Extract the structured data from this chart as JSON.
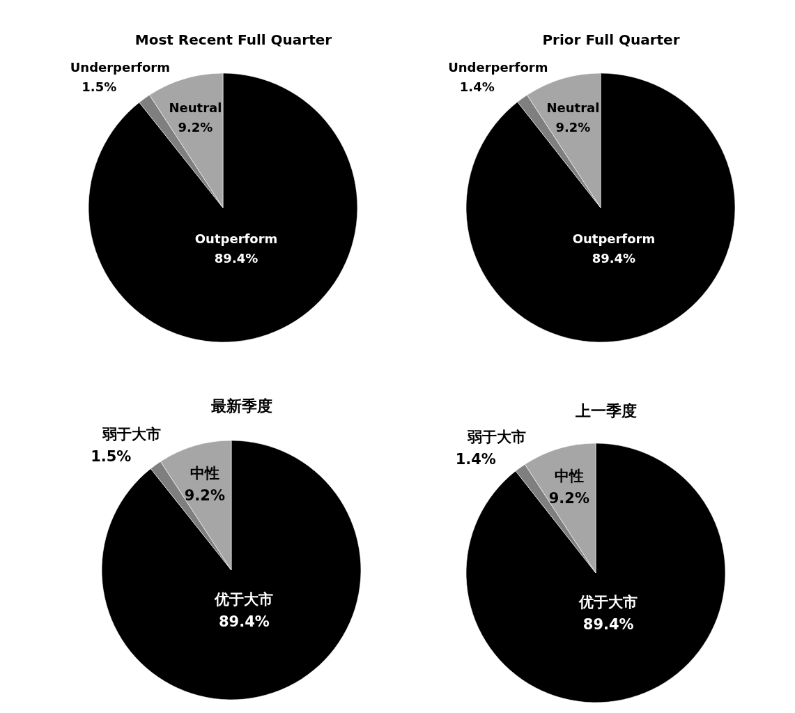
{
  "chart_data": [
    {
      "type": "pie",
      "title": "Most Recent Full Quarter",
      "categories": [
        "Outperform",
        "Underperform",
        "Neutral"
      ],
      "values": [
        89.4,
        1.5,
        9.2
      ],
      "value_labels": [
        "89.4%",
        "1.5%",
        "9.2%"
      ],
      "colors": [
        "#000000",
        "#7f7f7f",
        "#a6a6a6"
      ]
    },
    {
      "type": "pie",
      "title": "Prior Full Quarter",
      "categories": [
        "Outperform",
        "Underperform",
        "Neutral"
      ],
      "values": [
        89.4,
        1.4,
        9.2
      ],
      "value_labels": [
        "89.4%",
        "1.4%",
        "9.2%"
      ],
      "colors": [
        "#000000",
        "#7f7f7f",
        "#a6a6a6"
      ]
    },
    {
      "type": "pie",
      "title": "最新季度",
      "categories": [
        "优于大市",
        "弱于大市",
        "中性"
      ],
      "values": [
        89.4,
        1.5,
        9.2
      ],
      "value_labels": [
        "89.4%",
        "1.5%",
        "9.2%"
      ],
      "colors": [
        "#000000",
        "#7f7f7f",
        "#a6a6a6"
      ]
    },
    {
      "type": "pie",
      "title": "上一季度",
      "categories": [
        "优于大市",
        "弱于大市",
        "中性"
      ],
      "values": [
        89.4,
        1.4,
        9.2
      ],
      "value_labels": [
        "89.4%",
        "1.4%",
        "9.2%"
      ],
      "colors": [
        "#000000",
        "#7f7f7f",
        "#a6a6a6"
      ]
    }
  ]
}
